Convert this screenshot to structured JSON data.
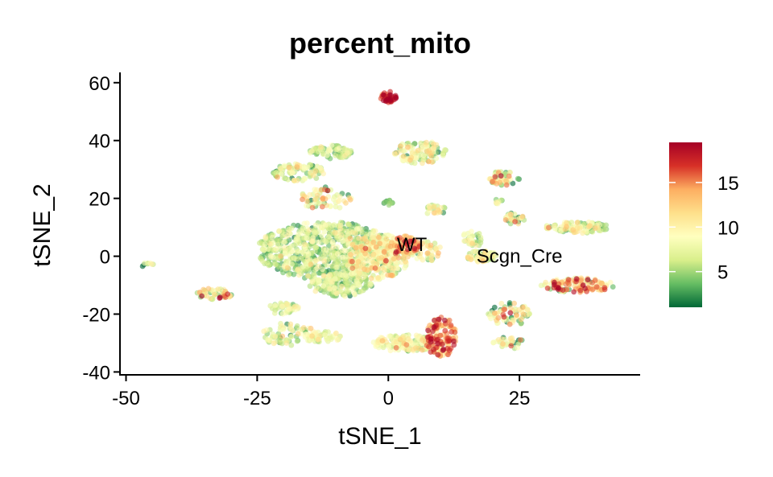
{
  "chart_data": {
    "type": "scatter",
    "title": "percent_mito",
    "xlabel": "tSNE_1",
    "ylabel": "tSNE_2",
    "xlim": [
      -51,
      48
    ],
    "ylim": [
      -41,
      63
    ],
    "x_ticks": [
      -50,
      -25,
      0,
      25
    ],
    "x_tick_labels": [
      "-50",
      "-25",
      "0",
      "25"
    ],
    "y_ticks": [
      -40,
      -20,
      0,
      20,
      40,
      60
    ],
    "y_tick_labels": [
      "-40",
      "-20",
      "0",
      "20",
      "40",
      "60"
    ],
    "annotations": [
      {
        "text": "WT",
        "x": 4.5,
        "y": 4
      },
      {
        "text": "Scgn_Cre",
        "x": 25,
        "y": 0
      }
    ],
    "color_scale": {
      "name": "RdYlGn (reversed)",
      "min": 1,
      "max": 19.5,
      "ticks": [
        5,
        10,
        15
      ],
      "tick_labels": [
        "5",
        "10",
        "15"
      ],
      "colors": [
        "#006837",
        "#66bd63",
        "#d9ef8b",
        "#ffffbf",
        "#fee08b",
        "#fdae61",
        "#d73027",
        "#a50026"
      ]
    },
    "legend_position": "right",
    "grid": false,
    "clusters": [
      {
        "cx": -12,
        "cy": 2,
        "rx": 13,
        "ry": 10,
        "n": 700,
        "mean": 6,
        "sd": 2.5
      },
      {
        "cx": -2,
        "cy": 0,
        "rx": 6,
        "ry": 8,
        "n": 260,
        "mean": 9,
        "sd": 3
      },
      {
        "cx": -9,
        "cy": -10,
        "rx": 6,
        "ry": 4,
        "n": 150,
        "mean": 6,
        "sd": 2
      },
      {
        "cx": -17,
        "cy": 29,
        "rx": 5,
        "ry": 3,
        "n": 90,
        "mean": 7,
        "sd": 3
      },
      {
        "cx": -11,
        "cy": 36,
        "rx": 4,
        "ry": 2.5,
        "n": 70,
        "mean": 6,
        "sd": 2
      },
      {
        "cx": -12,
        "cy": 20,
        "rx": 5,
        "ry": 4,
        "n": 60,
        "mean": 9,
        "sd": 4
      },
      {
        "cx": 0,
        "cy": 55,
        "rx": 1.5,
        "ry": 2,
        "n": 40,
        "mean": 17,
        "sd": 2
      },
      {
        "cx": 6,
        "cy": 36,
        "rx": 5,
        "ry": 4,
        "n": 110,
        "mean": 8,
        "sd": 3
      },
      {
        "cx": 0,
        "cy": 18.5,
        "rx": 1,
        "ry": 1,
        "n": 10,
        "mean": 4,
        "sd": 1
      },
      {
        "cx": 3,
        "cy": 4,
        "rx": 3,
        "ry": 3,
        "n": 70,
        "mean": 13,
        "sd": 3
      },
      {
        "cx": 7,
        "cy": 2,
        "rx": 3,
        "ry": 4,
        "n": 50,
        "mean": 9,
        "sd": 3
      },
      {
        "cx": 9,
        "cy": 16,
        "rx": 2,
        "ry": 2,
        "n": 25,
        "mean": 8,
        "sd": 3
      },
      {
        "cx": 3,
        "cy": -30,
        "rx": 6,
        "ry": 3,
        "n": 150,
        "mean": 8,
        "sd": 3
      },
      {
        "cx": 10,
        "cy": -28,
        "rx": 3,
        "ry": 7,
        "n": 130,
        "mean": 14,
        "sd": 4
      },
      {
        "cx": 16,
        "cy": 6,
        "rx": 2,
        "ry": 3,
        "n": 35,
        "mean": 7,
        "sd": 2.5
      },
      {
        "cx": 18,
        "cy": 0,
        "rx": 3,
        "ry": 2,
        "n": 70,
        "mean": 7,
        "sd": 3
      },
      {
        "cx": 22,
        "cy": 27,
        "rx": 3,
        "ry": 2.5,
        "n": 50,
        "mean": 9,
        "sd": 5
      },
      {
        "cx": 21,
        "cy": 19,
        "rx": 1,
        "ry": 1,
        "n": 8,
        "mean": 7,
        "sd": 2
      },
      {
        "cx": 24,
        "cy": 13,
        "rx": 2,
        "ry": 2,
        "n": 30,
        "mean": 8,
        "sd": 3
      },
      {
        "cx": 36,
        "cy": 10,
        "rx": 6,
        "ry": 2,
        "n": 110,
        "mean": 7,
        "sd": 3
      },
      {
        "cx": 36,
        "cy": -10,
        "rx": 7,
        "ry": 2.5,
        "n": 120,
        "mean": 12,
        "sd": 5
      },
      {
        "cx": 23,
        "cy": -20,
        "rx": 4,
        "ry": 4,
        "n": 70,
        "mean": 8,
        "sd": 4
      },
      {
        "cx": 23,
        "cy": -30,
        "rx": 3,
        "ry": 2,
        "n": 30,
        "mean": 8,
        "sd": 4
      },
      {
        "cx": -33,
        "cy": -13,
        "rx": 3.5,
        "ry": 2,
        "n": 50,
        "mean": 10,
        "sd": 5
      },
      {
        "cx": -46,
        "cy": -3,
        "rx": 1.2,
        "ry": 1,
        "n": 8,
        "mean": 8,
        "sd": 6
      },
      {
        "cx": -20,
        "cy": -18,
        "rx": 3,
        "ry": 2,
        "n": 40,
        "mean": 7,
        "sd": 2
      },
      {
        "cx": -19,
        "cy": -27,
        "rx": 5,
        "ry": 4,
        "n": 80,
        "mean": 7,
        "sd": 3
      },
      {
        "cx": -12,
        "cy": -28,
        "rx": 3,
        "ry": 2,
        "n": 40,
        "mean": 8,
        "sd": 2
      }
    ]
  }
}
